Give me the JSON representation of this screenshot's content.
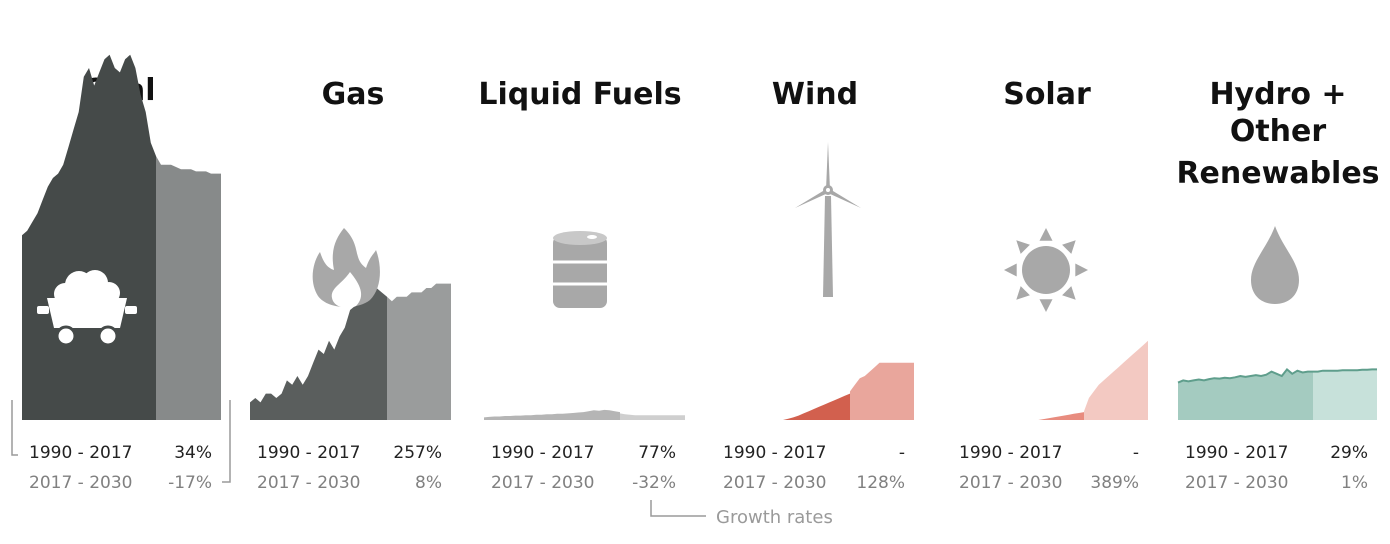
{
  "chart_data": {
    "type": "area",
    "periods": {
      "first": "1990 - 2017",
      "second": "2017 - 2030"
    },
    "legend_label": "Growth rates",
    "colors": {
      "coal_hist": "#454a49",
      "coal_proj": "#878a8a",
      "gas_hist": "#5a5e5d",
      "gas_proj": "#9a9c9c",
      "liquid_hist": "#b5b5b5",
      "liquid_proj": "#cfcfcf",
      "wind_hist": "#d2604e",
      "wind_proj": "#e9a69c",
      "solar_hist": "#e88c7f",
      "solar_proj": "#f3c9c2",
      "hydro_hist": "#a4cbc0",
      "hydro_proj": "#c7e1da",
      "hydro_line": "#5f9e8c",
      "icon": "#a8a8a8",
      "icon_on_dark": "#ffffff"
    },
    "categories": [
      {
        "key": "coal",
        "title_lines": [
          "Coal"
        ],
        "icon": "mine-cart-icon",
        "growth": {
          "first": "34%",
          "second": "-17%"
        },
        "hist": [
          0.42,
          0.43,
          0.45,
          0.47,
          0.5,
          0.53,
          0.55,
          0.56,
          0.58,
          0.62,
          0.66,
          0.7,
          0.78,
          0.8,
          0.76,
          0.79,
          0.82,
          0.83,
          0.8,
          0.79,
          0.82,
          0.83,
          0.8,
          0.74,
          0.7,
          0.63,
          0.6
        ],
        "proj": [
          0.6,
          0.58,
          0.58,
          0.58,
          0.575,
          0.57,
          0.57,
          0.57,
          0.565,
          0.565,
          0.565,
          0.56,
          0.56,
          0.56
        ]
      },
      {
        "key": "gas",
        "title_lines": [
          "Gas"
        ],
        "icon": "flame-icon",
        "growth": {
          "first": "257%",
          "second": "8%"
        },
        "hist": [
          0.04,
          0.05,
          0.04,
          0.06,
          0.06,
          0.05,
          0.06,
          0.09,
          0.08,
          0.1,
          0.08,
          0.1,
          0.13,
          0.16,
          0.15,
          0.18,
          0.16,
          0.19,
          0.21,
          0.25,
          0.26,
          0.28,
          0.3,
          0.29,
          0.3,
          0.29,
          0.28
        ],
        "proj": [
          0.28,
          0.27,
          0.28,
          0.28,
          0.28,
          0.29,
          0.29,
          0.29,
          0.3,
          0.3,
          0.31,
          0.31,
          0.31,
          0.31
        ]
      },
      {
        "key": "liquid",
        "title_lines": [
          "Liquid Fuels"
        ],
        "icon": "oil-barrel-icon",
        "growth": {
          "first": "77%",
          "second": "-32%"
        },
        "hist": [
          0.006,
          0.007,
          0.008,
          0.008,
          0.009,
          0.009,
          0.01,
          0.01,
          0.011,
          0.011,
          0.012,
          0.012,
          0.013,
          0.013,
          0.014,
          0.014,
          0.015,
          0.016,
          0.017,
          0.018,
          0.02,
          0.022,
          0.021,
          0.023,
          0.022,
          0.02,
          0.018
        ],
        "proj": [
          0.015,
          0.013,
          0.012,
          0.011,
          0.011,
          0.011,
          0.011,
          0.011,
          0.011,
          0.011,
          0.011,
          0.011,
          0.011,
          0.011
        ]
      },
      {
        "key": "wind",
        "title_lines": [
          "Wind"
        ],
        "icon": "wind-turbine-icon",
        "growth": {
          "first": "-",
          "second": "128%"
        },
        "hist": [
          0,
          0,
          0,
          0,
          0,
          0,
          0,
          0,
          0,
          0,
          0,
          0,
          0,
          0,
          0.003,
          0.006,
          0.01,
          0.015,
          0.02,
          0.025,
          0.03,
          0.035,
          0.04,
          0.045,
          0.05,
          0.055,
          0.06
        ],
        "proj": [
          0.065,
          0.08,
          0.095,
          0.1,
          0.11,
          0.12,
          0.13,
          0.13,
          0.13,
          0.13,
          0.13,
          0.13,
          0.13,
          0.13
        ]
      },
      {
        "key": "solar",
        "title_lines": [
          "Solar"
        ],
        "icon": "sun-icon",
        "growth": {
          "first": "-",
          "second": "389%"
        },
        "hist": [
          0,
          0,
          0,
          0,
          0,
          0,
          0,
          0,
          0,
          0,
          0,
          0,
          0,
          0,
          0,
          0,
          0,
          0,
          0.002,
          0.004,
          0.006,
          0.008,
          0.01,
          0.012,
          0.014,
          0.016,
          0.018
        ],
        "proj": [
          0.02,
          0.05,
          0.065,
          0.08,
          0.09,
          0.1,
          0.11,
          0.12,
          0.13,
          0.14,
          0.15,
          0.16,
          0.17,
          0.18
        ]
      },
      {
        "key": "hydro",
        "title_lines": [
          "Hydro +",
          "Other",
          "Renewables"
        ],
        "icon": "water-drop-icon",
        "growth": {
          "first": "29%",
          "second": "1%"
        },
        "hist": [
          0.085,
          0.09,
          0.088,
          0.09,
          0.092,
          0.09,
          0.093,
          0.095,
          0.094,
          0.096,
          0.095,
          0.097,
          0.1,
          0.098,
          0.1,
          0.102,
          0.1,
          0.103,
          0.11,
          0.105,
          0.1,
          0.115,
          0.105,
          0.112,
          0.108,
          0.11,
          0.11
        ],
        "proj": [
          0.11,
          0.11,
          0.112,
          0.112,
          0.112,
          0.112,
          0.113,
          0.113,
          0.113,
          0.113,
          0.114,
          0.114,
          0.115,
          0.115
        ]
      }
    ]
  }
}
